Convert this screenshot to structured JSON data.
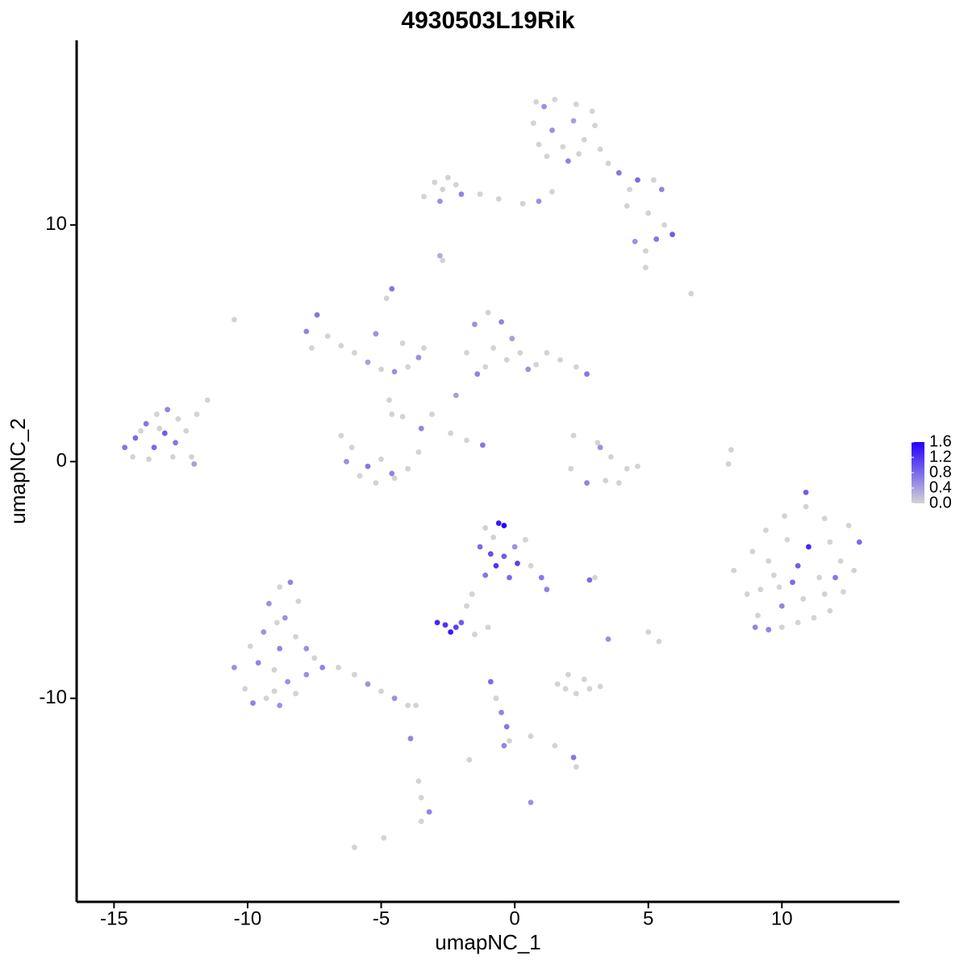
{
  "chart_data": {
    "type": "scatter",
    "title": "4930503L19Rik",
    "xlabel": "umapNC_1",
    "ylabel": "umapNC_2",
    "xlim": [
      -16.4,
      14.4
    ],
    "ylim": [
      -18.6,
      17.8
    ],
    "xticks": [
      -15,
      -10,
      -5,
      0,
      5,
      10
    ],
    "yticks": [
      -10,
      0,
      10
    ],
    "color_low": "#d3d3d3",
    "color_high": "#2200ff",
    "colorbar": {
      "lim": [
        0,
        1.6
      ],
      "ticks": [
        {
          "value": 0,
          "label": "0.0"
        },
        0.4,
        0.8,
        1.2,
        1.6
      ]
    },
    "x": [
      0.8,
      1.5,
      2.3,
      2.9,
      0.7,
      1.4,
      2.2,
      3.0,
      0.9,
      1.8,
      2.6,
      1.2,
      2.0,
      3.2,
      3.5,
      3.9,
      4.3,
      4.6,
      5.2,
      5.5,
      4.2,
      5.0,
      5.6,
      5.9,
      5.3,
      4.5,
      4.9,
      1.1,
      2.4,
      -3.0,
      -2.7,
      -2.2,
      -2.8,
      -2.0,
      -1.3,
      -0.6,
      0.3,
      0.9,
      1.4,
      -3.4,
      -2.5,
      -2.8,
      -2.7,
      -14.6,
      -14.2,
      -13.8,
      -13.4,
      -13.0,
      -12.6,
      -14.3,
      -13.5,
      -13.1,
      -12.7,
      -12.3,
      -12.1,
      -12.0,
      -13.7,
      -12.8,
      -11.9,
      -11.5,
      -13.3,
      -14.0,
      -7.8,
      -7.4,
      -7.0,
      -6.5,
      -6.0,
      -5.5,
      -5.0,
      -4.5,
      -4.0,
      -3.6,
      -7.6,
      -5.2,
      -4.8,
      -4.6,
      -4.2,
      -3.4,
      -10.5,
      -6.5,
      -6.3,
      -5.8,
      -5.2,
      -4.6,
      -4.0,
      -3.6,
      -3.5,
      -5.5,
      -5.0,
      -4.5,
      -6.1,
      -4.6,
      -4.7,
      -1.8,
      -1.5,
      -1.0,
      -0.5,
      -0.8,
      -0.3,
      -1.4,
      0.2,
      0.8,
      1.2,
      1.7,
      2.3,
      2.7,
      0.5,
      -2.2,
      -1.1,
      -0.1,
      -4.2,
      -3.1,
      -2.4,
      -1.8,
      -1.2,
      2.2,
      3.1,
      3.6,
      4.2,
      4.6,
      3.9,
      3.4,
      2.7,
      2.1,
      3.2,
      8.1,
      8.0,
      8.2,
      8.7,
      9.1,
      9.5,
      10.0,
      10.6,
      11.2,
      11.8,
      12.3,
      12.7,
      12.9,
      12.5,
      11.6,
      10.9,
      10.1,
      9.4,
      8.9,
      9.5,
      10.2,
      11.0,
      11.8,
      12.2,
      11.4,
      10.6,
      9.9,
      9.2,
      10.0,
      10.8,
      11.6,
      12.0,
      9.7,
      10.4,
      9.0,
      10.9,
      -1.1,
      -0.6,
      -0.4,
      -1.3,
      -0.9,
      -0.4,
      0.1,
      -0.7,
      -1.1,
      -0.2,
      0.4,
      0.6,
      1.0,
      1.2,
      0.0,
      -0.8,
      2.8,
      3.0,
      -2.9,
      -2.6,
      -2.2,
      -2.0,
      -2.4,
      -1.8,
      -1.6,
      -1.0,
      -1.5,
      -10.5,
      -10.1,
      -9.8,
      -9.3,
      -8.8,
      -8.2,
      -7.8,
      -7.2,
      -6.6,
      -6.0,
      -5.5,
      -5.0,
      -4.5,
      -4.0,
      -3.7,
      -9.9,
      -9.4,
      -8.9,
      -9.2,
      -8.8,
      -8.4,
      -8.1,
      -8.6,
      -8.2,
      -7.8,
      -9.6,
      -9.0,
      -8.5,
      -9.0,
      -7.5,
      -8.8,
      1.6,
      2.0,
      2.6,
      3.2,
      2.3,
      1.9,
      2.8,
      3.5,
      5.0,
      5.4,
      -0.9,
      -0.7,
      -0.5,
      -0.3,
      -0.2,
      -0.4,
      0.6,
      1.5,
      2.2,
      2.3,
      0.6,
      -3.6,
      -3.5,
      -3.2,
      -3.5,
      -3.9,
      -6.0,
      -4.9,
      6.6,
      4.9,
      -1.7
    ],
    "y": [
      15.2,
      15.3,
      15.1,
      14.8,
      14.3,
      14.0,
      14.4,
      14.2,
      13.4,
      13.3,
      13.6,
      12.9,
      12.7,
      13.2,
      12.6,
      12.2,
      11.5,
      11.9,
      11.9,
      11.5,
      10.8,
      10.5,
      10.0,
      9.6,
      9.4,
      9.3,
      8.9,
      15.0,
      13.0,
      11.8,
      11.5,
      11.7,
      11.0,
      11.3,
      11.3,
      11.1,
      10.9,
      11.0,
      11.4,
      11.2,
      12.0,
      8.7,
      8.5,
      0.6,
      1.0,
      1.6,
      2.0,
      2.2,
      1.8,
      0.2,
      0.6,
      1.2,
      0.8,
      1.3,
      0.2,
      -0.1,
      0.1,
      0.2,
      2.0,
      2.6,
      1.4,
      1.3,
      5.5,
      6.2,
      5.3,
      4.9,
      4.6,
      4.2,
      3.9,
      3.8,
      4.0,
      4.4,
      4.8,
      5.4,
      6.9,
      7.3,
      5.0,
      4.8,
      6.0,
      1.1,
      0.0,
      -0.6,
      -0.9,
      -0.5,
      -0.3,
      0.4,
      1.4,
      -0.2,
      0.1,
      -0.7,
      0.6,
      2.0,
      2.6,
      4.6,
      5.8,
      6.3,
      5.9,
      4.8,
      4.3,
      3.7,
      4.6,
      4.1,
      4.6,
      4.3,
      4.0,
      3.7,
      3.9,
      2.8,
      4.0,
      5.2,
      1.9,
      2.0,
      1.2,
      0.9,
      0.7,
      1.1,
      0.8,
      0.2,
      -0.3,
      -0.2,
      -0.9,
      -0.8,
      -0.9,
      -0.3,
      0.6,
      0.5,
      -0.1,
      -4.6,
      -5.6,
      -6.5,
      -7.1,
      -7.0,
      -6.8,
      -6.6,
      -6.3,
      -5.5,
      -4.6,
      -3.4,
      -2.7,
      -2.4,
      -1.9,
      -2.3,
      -2.9,
      -3.8,
      -4.2,
      -3.3,
      -3.6,
      -3.4,
      -4.2,
      -4.9,
      -4.4,
      -5.3,
      -5.4,
      -6.1,
      -5.8,
      -5.6,
      -4.9,
      -4.8,
      -5.1,
      -7.0,
      -1.3,
      -2.8,
      -2.6,
      -2.7,
      -3.6,
      -3.9,
      -4.0,
      -4.3,
      -4.4,
      -4.8,
      -4.9,
      -3.3,
      -4.4,
      -4.9,
      -5.4,
      -3.6,
      -3.2,
      -5.0,
      -4.9,
      -6.8,
      -6.9,
      -7.0,
      -6.8,
      -7.2,
      -6.1,
      -5.6,
      -7.0,
      -7.3,
      -8.7,
      -9.6,
      -10.2,
      -10.0,
      -10.3,
      -9.8,
      -9.0,
      -8.7,
      -8.7,
      -9.0,
      -9.4,
      -9.7,
      -10.0,
      -10.3,
      -10.3,
      -7.8,
      -7.2,
      -6.8,
      -6.0,
      -5.3,
      -5.1,
      -5.9,
      -6.6,
      -7.4,
      -7.9,
      -8.5,
      -8.8,
      -9.3,
      -9.7,
      -8.3,
      -7.9,
      -9.4,
      -9.0,
      -9.2,
      -9.5,
      -9.8,
      -9.6,
      -9.6,
      -7.5,
      -7.2,
      -7.6,
      -9.3,
      -10.0,
      -10.6,
      -11.2,
      -11.8,
      -12.0,
      -11.6,
      -12.0,
      -12.5,
      -12.9,
      -14.4,
      -13.5,
      -14.2,
      -14.8,
      -15.2,
      -11.7,
      -16.3,
      -15.9,
      7.1,
      8.2,
      -12.6
    ],
    "values": [
      0,
      0,
      0,
      0,
      0,
      0.5,
      0.4,
      0,
      0,
      0,
      0,
      0,
      0.6,
      0,
      0,
      0.7,
      0,
      0.8,
      0,
      0.6,
      0,
      0,
      0,
      0.9,
      0.7,
      0.5,
      0,
      0.5,
      0,
      0,
      0,
      0,
      0.5,
      0.6,
      0,
      0,
      0,
      0.5,
      0,
      0,
      0,
      0.3,
      0,
      0.7,
      0.8,
      0.7,
      0,
      0.6,
      0,
      0,
      0.8,
      0.9,
      0.7,
      0,
      0,
      0.4,
      0,
      0,
      0,
      0,
      0,
      0,
      0.6,
      0.7,
      0,
      0,
      0,
      0.4,
      0,
      0.5,
      0,
      0.5,
      0,
      0.5,
      0,
      0.7,
      0,
      0,
      0,
      0,
      0.5,
      0,
      0,
      0.6,
      0,
      0,
      0.6,
      0.7,
      0,
      0,
      0,
      0,
      0,
      0,
      0.5,
      0,
      0.6,
      0,
      0,
      0.6,
      0,
      0,
      0,
      0,
      0,
      0.7,
      0.5,
      0.4,
      0,
      0.4,
      0,
      0,
      0,
      0,
      0.7,
      0,
      0,
      0,
      0,
      0,
      0,
      0,
      0.6,
      0,
      0.5,
      0,
      0,
      0,
      0,
      0,
      0.6,
      0,
      0,
      0,
      0,
      0,
      0,
      0.8,
      0,
      0,
      0,
      0,
      0,
      0,
      0,
      0,
      1.3,
      0,
      0,
      0,
      0.9,
      0,
      0,
      0.6,
      0,
      0,
      0.7,
      0,
      0.8,
      0.6,
      0.9,
      0,
      1.4,
      1.6,
      0.8,
      1.0,
      0.9,
      1.1,
      1.2,
      0.7,
      0.8,
      0,
      0,
      0.7,
      0.6,
      0.5,
      0,
      0.8,
      0,
      1.3,
      1.2,
      1.1,
      0.9,
      1.4,
      0,
      0,
      0,
      0,
      0.5,
      0,
      0.6,
      0,
      0.5,
      0,
      0.5,
      0.6,
      0,
      0,
      0.5,
      0,
      0.5,
      0,
      0,
      0,
      0.5,
      0,
      0.5,
      0,
      0.6,
      0,
      0.5,
      0,
      0.5,
      0.6,
      0,
      0.5,
      0,
      0,
      0.6,
      0,
      0,
      0,
      0,
      0,
      0,
      0,
      0.5,
      0,
      0,
      0.8,
      0,
      0.6,
      0.7,
      0,
      0.6,
      0,
      0,
      0.7,
      0,
      0.5,
      0,
      0,
      0.6,
      0,
      0.6,
      0,
      0,
      0,
      0,
      0
    ]
  }
}
